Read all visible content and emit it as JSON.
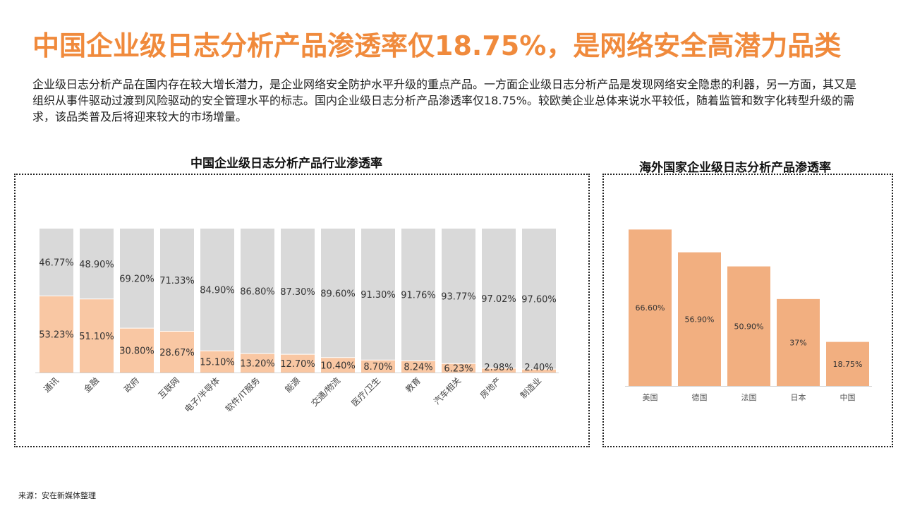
{
  "title": "中国企业级日志分析产品渗透率仅18.75%，是网络安全高潜力品类",
  "intro": "企业级日志分析产品在国内存在较大增长潜力，是企业网络安全防护水平升级的重点产品。一方面企业级日志分析产品是发现网络安全隐患的利器，另一方面，其又是组织从事件驱动过渡到风险驱动的安全管理水平的标志。国内企业级日志分析产品渗透率仅18.75%。较欧美企业总体来说水平较低，随着监管和数字化转型升级的需求，该品类普及后将迎来较大的市场增量。",
  "source": "来源：安在新媒体整理",
  "colors": {
    "title": "#f08a3c",
    "penetrated": "#f9c7a3",
    "remaining": "#d9d9d9",
    "overseas_bar": "#f2af80"
  },
  "chart_data": [
    {
      "type": "bar",
      "stacked": true,
      "title": "中国企业级日志分析产品行业渗透率",
      "categories": [
        "通讯",
        "金融",
        "政府",
        "互联网",
        "电子/半导体",
        "软件/IT服务",
        "能源",
        "交通/物流",
        "医疗/卫生",
        "教育",
        "汽车相关",
        "房地产",
        "制造业"
      ],
      "series": [
        {
          "values": [
            53.23,
            51.1,
            30.8,
            28.67,
            15.1,
            13.2,
            12.7,
            10.4,
            8.7,
            8.24,
            6.23,
            2.98,
            2.4
          ],
          "labels": [
            "53.23%",
            "51.10%",
            "30.80%",
            "28.67%",
            "15.10%",
            "13.20%",
            "12.70%",
            "10.40%",
            "8.70%",
            "8.24%",
            "6.23%",
            "2.98%",
            "2.40%"
          ]
        },
        {
          "values": [
            46.77,
            48.9,
            69.2,
            71.33,
            84.9,
            86.8,
            87.3,
            89.6,
            91.3,
            91.76,
            93.77,
            97.02,
            97.6
          ],
          "labels": [
            "46.77%",
            "48.90%",
            "69.20%",
            "71.33%",
            "84.90%",
            "86.80%",
            "87.30%",
            "89.60%",
            "91.30%",
            "91.76%",
            "93.77%",
            "97.02%",
            "97.60%"
          ]
        }
      ],
      "ylim": [
        0,
        100
      ],
      "grid": false,
      "legend": "none"
    },
    {
      "type": "bar",
      "title": "海外国家企业级日志分析产品渗透率",
      "categories": [
        "美国",
        "德国",
        "法国",
        "日本",
        "中国"
      ],
      "values": [
        66.6,
        56.9,
        50.9,
        37,
        18.75
      ],
      "labels": [
        "66.60%",
        "56.90%",
        "50.90%",
        "37%",
        "18.75%"
      ],
      "ylim": [
        0,
        70
      ],
      "grid": false,
      "legend": "none"
    }
  ]
}
